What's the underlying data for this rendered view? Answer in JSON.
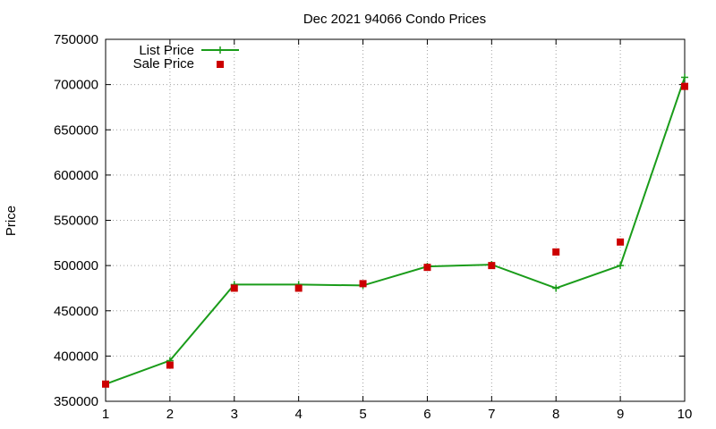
{
  "chart_data": {
    "type": "line",
    "title": "Dec 2021 94066 Condo Prices",
    "xlabel": "",
    "ylabel": "Price",
    "x": [
      1,
      2,
      3,
      4,
      5,
      6,
      7,
      8,
      9,
      10
    ],
    "xlim": [
      1,
      10
    ],
    "ylim": [
      350000,
      750000
    ],
    "xticks": [
      1,
      2,
      3,
      4,
      5,
      6,
      7,
      8,
      9,
      10
    ],
    "yticks": [
      350000,
      400000,
      450000,
      500000,
      550000,
      600000,
      650000,
      700000,
      750000
    ],
    "xtick_labels": [
      "1",
      "2",
      "3",
      "4",
      "5",
      "6",
      "7",
      "8",
      "9",
      "10"
    ],
    "ytick_labels": [
      "350000",
      "400000",
      "450000",
      "500000",
      "550000",
      "600000",
      "650000",
      "700000",
      "750000"
    ],
    "grid": true,
    "legend_position": "top-left",
    "series": [
      {
        "name": "List Price",
        "style": "linespoints",
        "marker": "plus",
        "color": "#1a9c1a",
        "values": [
          369000,
          395000,
          479000,
          479000,
          478000,
          499000,
          501000,
          475000,
          500000,
          708000
        ]
      },
      {
        "name": "Sale Price",
        "style": "points",
        "marker": "square",
        "color": "#cc0000",
        "values": [
          369000,
          390000,
          475000,
          475000,
          480000,
          498000,
          500000,
          515000,
          526000,
          698000
        ]
      }
    ]
  }
}
